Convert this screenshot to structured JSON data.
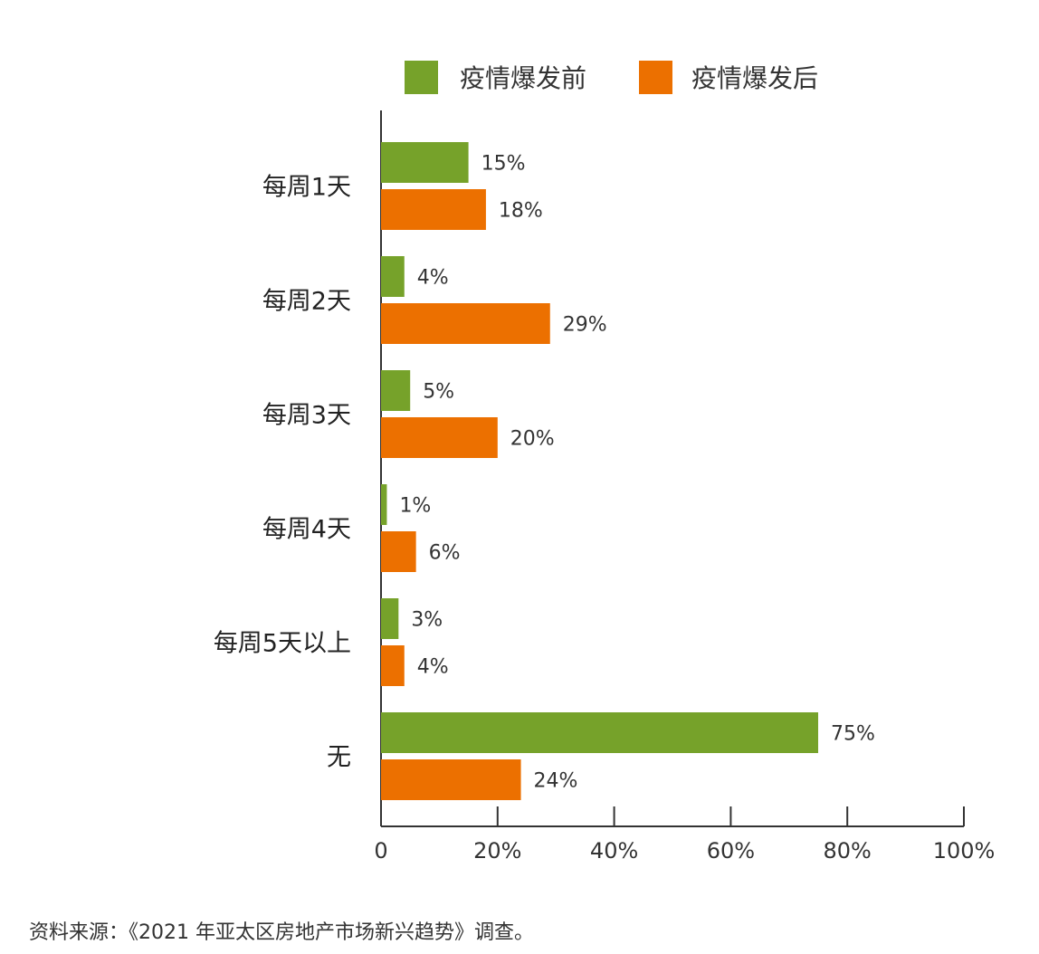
{
  "chart_data": {
    "type": "bar",
    "orientation": "horizontal",
    "categories": [
      "每周1天",
      "每周2天",
      "每周3天",
      "每周4天",
      "每周5天以上",
      "无"
    ],
    "series": [
      {
        "name": "疫情爆发前",
        "values": [
          15,
          4,
          5,
          1,
          3,
          75
        ],
        "color": "#76a22a"
      },
      {
        "name": "疫情爆发后",
        "values": [
          18,
          29,
          20,
          6,
          4,
          24
        ],
        "color": "#ec7000"
      }
    ],
    "data_labels": [
      [
        "15%",
        "4%",
        "5%",
        "1%",
        "3%",
        "75%"
      ],
      [
        "18%",
        "29%",
        "20%",
        "6%",
        "4%",
        "24%"
      ]
    ],
    "x_ticks": [
      0,
      20,
      40,
      60,
      80,
      100
    ],
    "x_tick_labels": [
      "0",
      "20%",
      "40%",
      "60%",
      "80%",
      "100%"
    ],
    "xlim": [
      0,
      100
    ],
    "grid": false,
    "legend_position": "top-center",
    "title": "",
    "xlabel": "",
    "ylabel": ""
  },
  "source_note": "资料来源：《2021 年亚太区房地产市场新兴趋势》调查。"
}
